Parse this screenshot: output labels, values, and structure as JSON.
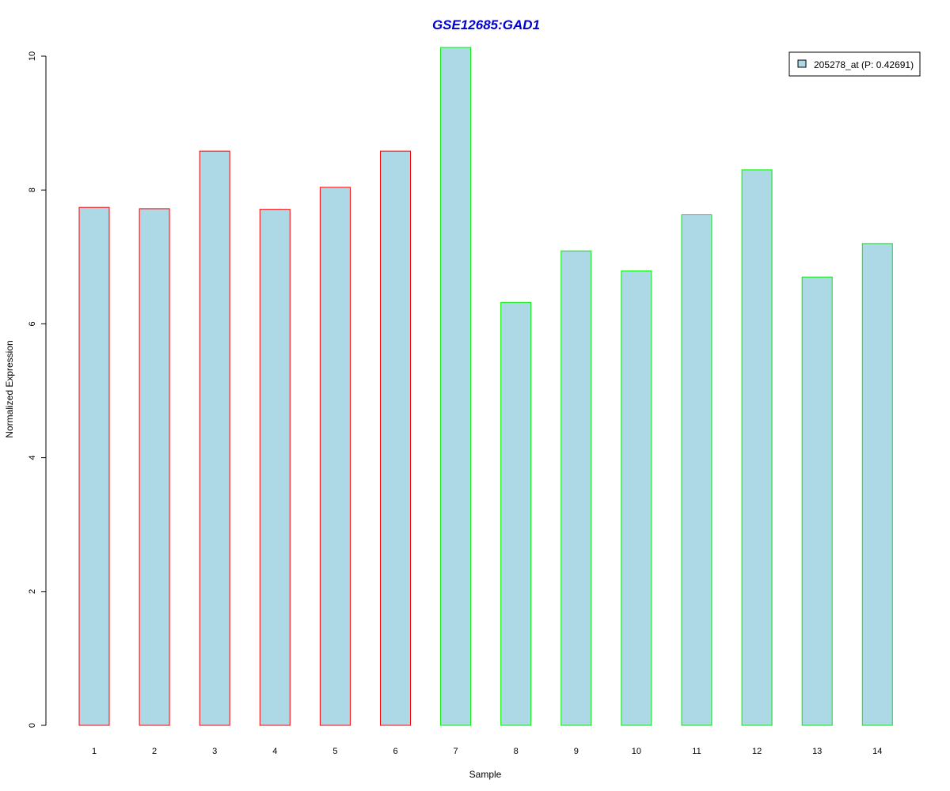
{
  "chart_data": {
    "type": "bar",
    "title": "GSE12685:GAD1",
    "xlabel": "Sample",
    "ylabel": "Normalized Expression",
    "categories": [
      "1",
      "2",
      "3",
      "4",
      "5",
      "6",
      "7",
      "8",
      "9",
      "10",
      "11",
      "12",
      "13",
      "14"
    ],
    "series": [
      {
        "name": "205278_at (P: 0.42691)",
        "values": [
          7.74,
          7.72,
          8.58,
          7.71,
          8.04,
          8.58,
          10.13,
          6.32,
          7.09,
          6.79,
          7.63,
          8.3,
          6.7,
          7.2
        ]
      }
    ],
    "ylim": [
      0,
      10
    ],
    "yticks": [
      "0",
      "2",
      "4",
      "6",
      "8",
      "10"
    ],
    "grid": false,
    "legend_position": "top-right",
    "colors": {
      "bar_fill": "#add8e6",
      "title": "#0000cc",
      "group_borders": [
        "#ff0000",
        "#ff0000",
        "#ff0000",
        "#ff0000",
        "#ff0000",
        "#ff0000",
        "#00ee00",
        "#00ee00",
        "#00ee00",
        "#00ee00",
        "#00ee00",
        "#00ee00",
        "#00ee00",
        "#00ee00"
      ]
    }
  }
}
